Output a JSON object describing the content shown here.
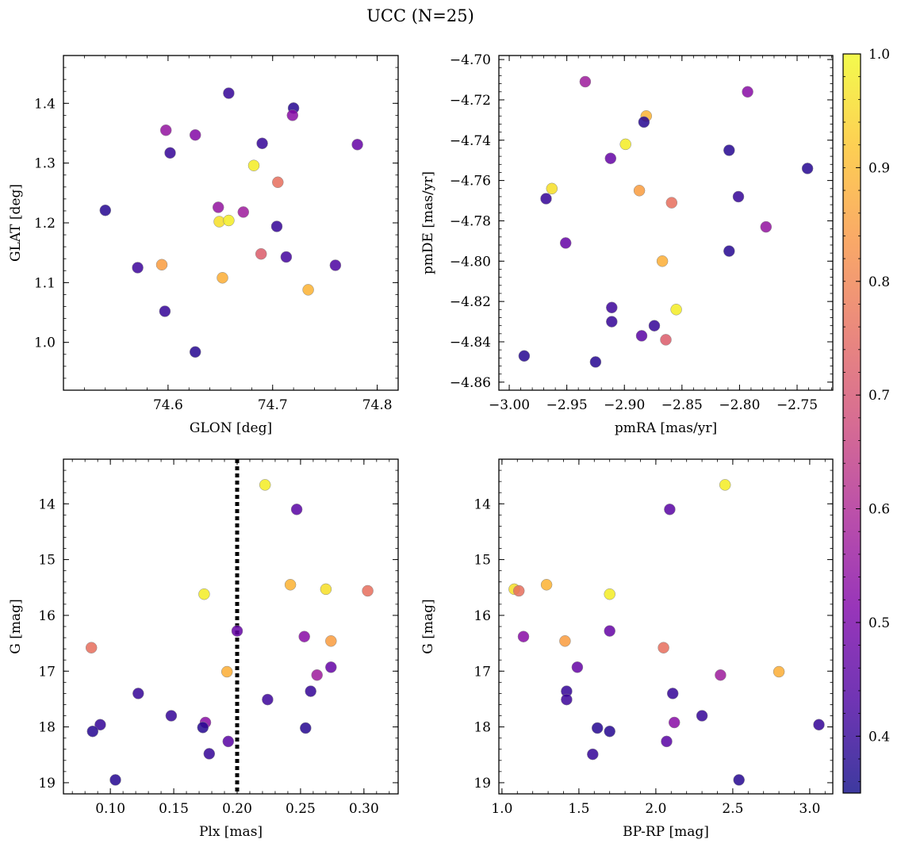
{
  "title": "UCC (N=25)",
  "colormap": {
    "name": "plasma",
    "range": [
      0.35,
      1.0
    ],
    "ticks": [
      "1.0",
      "0.9",
      "0.8",
      "0.7",
      "0.6",
      "0.5",
      "0.4"
    ],
    "tick_values": [
      1.0,
      0.9,
      0.8,
      0.7,
      0.6,
      0.5,
      0.4
    ]
  },
  "chart_data": [
    {
      "type": "scatter",
      "xlabel": "GLON [deg]",
      "ylabel": "GLAT [deg]",
      "xlim": [
        74.5,
        74.82
      ],
      "ylim": [
        0.92,
        1.48
      ],
      "xticks": [
        "74.6",
        "74.7",
        "74.8"
      ],
      "xtick_values": [
        74.6,
        74.7,
        74.8
      ],
      "yticks": [
        "1.0",
        "1.1",
        "1.2",
        "1.3",
        "1.4"
      ],
      "ytick_values": [
        1.0,
        1.1,
        1.2,
        1.3,
        1.4
      ],
      "points": [
        {
          "x": 74.658,
          "y": 1.417,
          "c": 0.4
        },
        {
          "x": 74.72,
          "y": 1.392,
          "c": 0.38
        },
        {
          "x": 74.719,
          "y": 1.38,
          "c": 0.53
        },
        {
          "x": 74.598,
          "y": 1.355,
          "c": 0.55
        },
        {
          "x": 74.626,
          "y": 1.347,
          "c": 0.52
        },
        {
          "x": 74.69,
          "y": 1.333,
          "c": 0.4
        },
        {
          "x": 74.781,
          "y": 1.331,
          "c": 0.47
        },
        {
          "x": 74.602,
          "y": 1.317,
          "c": 0.4
        },
        {
          "x": 74.682,
          "y": 1.296,
          "c": 0.98
        },
        {
          "x": 74.705,
          "y": 1.268,
          "c": 0.76
        },
        {
          "x": 74.648,
          "y": 1.226,
          "c": 0.55
        },
        {
          "x": 74.54,
          "y": 1.221,
          "c": 0.38
        },
        {
          "x": 74.672,
          "y": 1.218,
          "c": 0.57
        },
        {
          "x": 74.649,
          "y": 1.202,
          "c": 0.96
        },
        {
          "x": 74.658,
          "y": 1.204,
          "c": 0.98
        },
        {
          "x": 74.704,
          "y": 1.194,
          "c": 0.4
        },
        {
          "x": 74.689,
          "y": 1.148,
          "c": 0.72
        },
        {
          "x": 74.713,
          "y": 1.143,
          "c": 0.42
        },
        {
          "x": 74.571,
          "y": 1.125,
          "c": 0.41
        },
        {
          "x": 74.594,
          "y": 1.13,
          "c": 0.85
        },
        {
          "x": 74.76,
          "y": 1.129,
          "c": 0.43
        },
        {
          "x": 74.652,
          "y": 1.108,
          "c": 0.88
        },
        {
          "x": 74.734,
          "y": 1.088,
          "c": 0.89
        },
        {
          "x": 74.597,
          "y": 1.052,
          "c": 0.4
        },
        {
          "x": 74.626,
          "y": 0.984,
          "c": 0.38
        }
      ]
    },
    {
      "type": "scatter",
      "xlabel": "pmRA [mas/yr]",
      "ylabel": "pmDE [mas/yr]",
      "xlim": [
        -3.009,
        -2.719
      ],
      "ylim": [
        -4.864,
        -4.698
      ],
      "xticks": [
        "−3.00",
        "−2.95",
        "−2.90",
        "−2.85",
        "−2.80",
        "−2.75"
      ],
      "xtick_values": [
        -3.0,
        -2.95,
        -2.9,
        -2.85,
        -2.8,
        -2.75
      ],
      "yticks": [
        "−4.70",
        "−4.72",
        "−4.74",
        "−4.76",
        "−4.78",
        "−4.80",
        "−4.82",
        "−4.84",
        "−4.86"
      ],
      "ytick_values": [
        -4.7,
        -4.72,
        -4.74,
        -4.76,
        -4.78,
        -4.8,
        -4.82,
        -4.84,
        -4.86
      ],
      "points": [
        {
          "x": -2.934,
          "y": -4.711,
          "c": 0.57
        },
        {
          "x": -2.793,
          "y": -4.716,
          "c": 0.53
        },
        {
          "x": -2.881,
          "y": -4.728,
          "c": 0.89
        },
        {
          "x": -2.883,
          "y": -4.731,
          "c": 0.38
        },
        {
          "x": -2.899,
          "y": -4.742,
          "c": 0.98
        },
        {
          "x": -2.809,
          "y": -4.745,
          "c": 0.38
        },
        {
          "x": -2.912,
          "y": -4.749,
          "c": 0.47
        },
        {
          "x": -2.741,
          "y": -4.754,
          "c": 0.38
        },
        {
          "x": -2.963,
          "y": -4.764,
          "c": 0.96
        },
        {
          "x": -2.887,
          "y": -4.765,
          "c": 0.85
        },
        {
          "x": -2.968,
          "y": -4.769,
          "c": 0.4
        },
        {
          "x": -2.801,
          "y": -4.768,
          "c": 0.4
        },
        {
          "x": -2.859,
          "y": -4.771,
          "c": 0.76
        },
        {
          "x": -2.777,
          "y": -4.783,
          "c": 0.55
        },
        {
          "x": -2.951,
          "y": -4.791,
          "c": 0.47
        },
        {
          "x": -2.809,
          "y": -4.795,
          "c": 0.38
        },
        {
          "x": -2.867,
          "y": -4.8,
          "c": 0.88
        },
        {
          "x": -2.855,
          "y": -4.824,
          "c": 0.98
        },
        {
          "x": -2.911,
          "y": -4.823,
          "c": 0.41
        },
        {
          "x": -2.911,
          "y": -4.83,
          "c": 0.4
        },
        {
          "x": -2.874,
          "y": -4.832,
          "c": 0.4
        },
        {
          "x": -2.885,
          "y": -4.837,
          "c": 0.45
        },
        {
          "x": -2.864,
          "y": -4.839,
          "c": 0.72
        },
        {
          "x": -2.987,
          "y": -4.847,
          "c": 0.38
        },
        {
          "x": -2.925,
          "y": -4.85,
          "c": 0.38
        }
      ]
    },
    {
      "type": "scatter",
      "xlabel": "Plx [mas]",
      "ylabel": "G [mag]",
      "xlim": [
        0.063,
        0.327
      ],
      "ylim": [
        19.2,
        13.2
      ],
      "y_inverted": true,
      "vline": {
        "x": 0.2,
        "style": "dotted"
      },
      "xticks": [
        "0.10",
        "0.15",
        "0.20",
        "0.25",
        "0.30"
      ],
      "xtick_values": [
        0.1,
        0.15,
        0.2,
        0.25,
        0.3
      ],
      "yticks": [
        "14",
        "15",
        "16",
        "17",
        "18",
        "19"
      ],
      "ytick_values": [
        14,
        15,
        16,
        17,
        18,
        19
      ],
      "points": [
        {
          "x": 0.222,
          "y": 13.66,
          "c": 0.98
        },
        {
          "x": 0.247,
          "y": 14.1,
          "c": 0.45
        },
        {
          "x": 0.242,
          "y": 15.45,
          "c": 0.89
        },
        {
          "x": 0.27,
          "y": 15.53,
          "c": 0.96
        },
        {
          "x": 0.303,
          "y": 15.56,
          "c": 0.76
        },
        {
          "x": 0.174,
          "y": 15.62,
          "c": 0.98
        },
        {
          "x": 0.2,
          "y": 16.28,
          "c": 0.47
        },
        {
          "x": 0.253,
          "y": 16.38,
          "c": 0.53
        },
        {
          "x": 0.274,
          "y": 16.46,
          "c": 0.85
        },
        {
          "x": 0.085,
          "y": 16.58,
          "c": 0.76
        },
        {
          "x": 0.274,
          "y": 16.93,
          "c": 0.47
        },
        {
          "x": 0.192,
          "y": 17.01,
          "c": 0.88
        },
        {
          "x": 0.263,
          "y": 17.07,
          "c": 0.57
        },
        {
          "x": 0.258,
          "y": 17.36,
          "c": 0.4
        },
        {
          "x": 0.122,
          "y": 17.4,
          "c": 0.4
        },
        {
          "x": 0.224,
          "y": 17.51,
          "c": 0.41
        },
        {
          "x": 0.148,
          "y": 17.8,
          "c": 0.4
        },
        {
          "x": 0.175,
          "y": 17.92,
          "c": 0.53
        },
        {
          "x": 0.092,
          "y": 17.96,
          "c": 0.4
        },
        {
          "x": 0.173,
          "y": 18.01,
          "c": 0.38
        },
        {
          "x": 0.254,
          "y": 18.02,
          "c": 0.38
        },
        {
          "x": 0.086,
          "y": 18.08,
          "c": 0.38
        },
        {
          "x": 0.193,
          "y": 18.26,
          "c": 0.45
        },
        {
          "x": 0.178,
          "y": 18.48,
          "c": 0.4
        },
        {
          "x": 0.104,
          "y": 18.95,
          "c": 0.38
        }
      ]
    },
    {
      "type": "scatter",
      "xlabel": "BP-RP [mag]",
      "ylabel": "G [mag]",
      "xlim": [
        0.98,
        3.15
      ],
      "ylim": [
        19.2,
        13.2
      ],
      "y_inverted": true,
      "xticks": [
        "1.0",
        "1.5",
        "2.0",
        "2.5",
        "3.0"
      ],
      "xtick_values": [
        1.0,
        1.5,
        2.0,
        2.5,
        3.0
      ],
      "yticks": [
        "14",
        "15",
        "16",
        "17",
        "18",
        "19"
      ],
      "ytick_values": [
        14,
        15,
        16,
        17,
        18,
        19
      ],
      "points": [
        {
          "x": 2.45,
          "y": 13.66,
          "c": 0.98
        },
        {
          "x": 2.09,
          "y": 14.1,
          "c": 0.45
        },
        {
          "x": 1.29,
          "y": 15.45,
          "c": 0.89
        },
        {
          "x": 1.08,
          "y": 15.53,
          "c": 0.96
        },
        {
          "x": 1.11,
          "y": 15.56,
          "c": 0.76
        },
        {
          "x": 1.7,
          "y": 15.62,
          "c": 0.98
        },
        {
          "x": 1.7,
          "y": 16.28,
          "c": 0.47
        },
        {
          "x": 1.14,
          "y": 16.38,
          "c": 0.53
        },
        {
          "x": 1.41,
          "y": 16.46,
          "c": 0.85
        },
        {
          "x": 2.05,
          "y": 16.58,
          "c": 0.76
        },
        {
          "x": 1.49,
          "y": 16.93,
          "c": 0.47
        },
        {
          "x": 2.8,
          "y": 17.01,
          "c": 0.88
        },
        {
          "x": 2.42,
          "y": 17.07,
          "c": 0.57
        },
        {
          "x": 1.42,
          "y": 17.36,
          "c": 0.4
        },
        {
          "x": 2.11,
          "y": 17.4,
          "c": 0.4
        },
        {
          "x": 1.42,
          "y": 17.51,
          "c": 0.41
        },
        {
          "x": 2.3,
          "y": 17.8,
          "c": 0.4
        },
        {
          "x": 2.12,
          "y": 17.92,
          "c": 0.53
        },
        {
          "x": 3.06,
          "y": 17.96,
          "c": 0.4
        },
        {
          "x": 1.62,
          "y": 18.02,
          "c": 0.38
        },
        {
          "x": 1.7,
          "y": 18.08,
          "c": 0.38
        },
        {
          "x": 2.07,
          "y": 18.26,
          "c": 0.45
        },
        {
          "x": 1.59,
          "y": 18.49,
          "c": 0.4
        },
        {
          "x": 2.54,
          "y": 18.95,
          "c": 0.38
        }
      ]
    }
  ]
}
